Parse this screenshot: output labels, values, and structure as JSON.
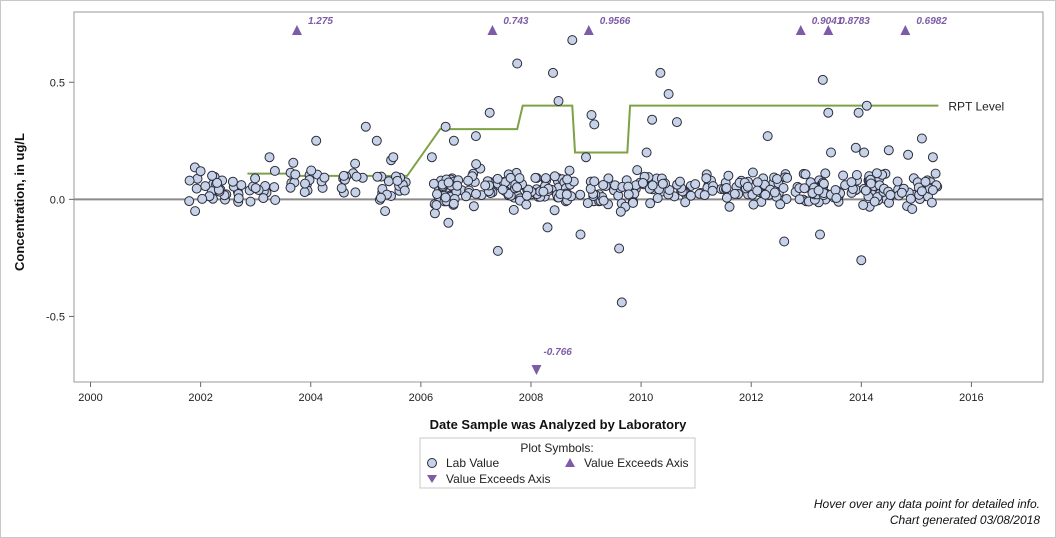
{
  "chart_data": {
    "type": "scatter",
    "xlabel": "Date Sample was Analyzed by Laboratory",
    "ylabel": "Concentration, in ug/L",
    "x_range": [
      1999.7,
      2017.3
    ],
    "y_range": [
      -0.78,
      0.8
    ],
    "x_ticks": [
      2000,
      2002,
      2004,
      2006,
      2008,
      2010,
      2012,
      2014,
      2016
    ],
    "y_ticks": [
      -0.5,
      0.0,
      0.5
    ],
    "y_tick_labels": [
      "-0.5",
      "0.0",
      "0.5"
    ],
    "grid": false,
    "colors": {
      "lab_point_fill": "#c5d2e8",
      "lab_point_stroke": "#2b2b3a",
      "exceed_marker": "#7d5ba6",
      "rpt_line": "#7ea146",
      "zero_line": "#8a8a8a"
    },
    "rpt_level": {
      "label": "RPT Level",
      "points": [
        [
          2002.85,
          0.11
        ],
        [
          2003.75,
          0.11
        ],
        [
          2003.8,
          0.1
        ],
        [
          2005.75,
          0.1
        ],
        [
          2006.35,
          0.3
        ],
        [
          2007.75,
          0.3
        ],
        [
          2007.85,
          0.4
        ],
        [
          2008.75,
          0.4
        ],
        [
          2008.8,
          0.2
        ],
        [
          2009.75,
          0.2
        ],
        [
          2009.8,
          0.4
        ],
        [
          2015.4,
          0.4
        ]
      ]
    },
    "exceeds_up": [
      {
        "x": 2003.75,
        "label": "1.275"
      },
      {
        "x": 2007.3,
        "label": "0.743"
      },
      {
        "x": 2009.05,
        "label": "0.9566"
      },
      {
        "x": 2012.9,
        "label": "0.9041"
      },
      {
        "x": 2013.4,
        "label": "0.8783"
      },
      {
        "x": 2014.8,
        "label": "0.6982"
      }
    ],
    "exceeds_down": [
      {
        "x": 2008.1,
        "label": "-0.766"
      }
    ],
    "notable_points": [
      [
        2001.8,
        0.08
      ],
      [
        2001.9,
        -0.05
      ],
      [
        2002.0,
        0.12
      ],
      [
        2002.3,
        0.07
      ],
      [
        2003.25,
        0.18
      ],
      [
        2004.1,
        0.25
      ],
      [
        2004.6,
        0.1
      ],
      [
        2005.0,
        0.31
      ],
      [
        2005.2,
        0.25
      ],
      [
        2005.35,
        -0.05
      ],
      [
        2005.5,
        0.18
      ],
      [
        2006.2,
        0.18
      ],
      [
        2006.45,
        0.31
      ],
      [
        2006.5,
        -0.1
      ],
      [
        2006.6,
        0.25
      ],
      [
        2007.0,
        0.27
      ],
      [
        2007.25,
        0.37
      ],
      [
        2007.4,
        -0.22
      ],
      [
        2007.75,
        0.58
      ],
      [
        2008.3,
        -0.12
      ],
      [
        2008.4,
        0.54
      ],
      [
        2008.5,
        0.42
      ],
      [
        2008.75,
        0.68
      ],
      [
        2008.9,
        -0.15
      ],
      [
        2009.0,
        0.18
      ],
      [
        2009.1,
        0.36
      ],
      [
        2009.15,
        0.32
      ],
      [
        2009.6,
        -0.21
      ],
      [
        2009.65,
        -0.44
      ],
      [
        2010.1,
        0.2
      ],
      [
        2010.2,
        0.34
      ],
      [
        2010.35,
        0.54
      ],
      [
        2010.5,
        0.45
      ],
      [
        2010.65,
        0.33
      ],
      [
        2012.3,
        0.27
      ],
      [
        2012.6,
        -0.18
      ],
      [
        2013.3,
        0.51
      ],
      [
        2013.4,
        0.37
      ],
      [
        2013.45,
        0.2
      ],
      [
        2013.25,
        -0.15
      ],
      [
        2013.9,
        0.22
      ],
      [
        2013.95,
        0.37
      ],
      [
        2014.0,
        -0.26
      ],
      [
        2014.1,
        0.4
      ],
      [
        2014.05,
        0.2
      ],
      [
        2014.5,
        0.21
      ],
      [
        2014.85,
        0.19
      ],
      [
        2015.1,
        0.26
      ],
      [
        2015.3,
        0.18
      ],
      [
        2015.35,
        0.11
      ]
    ],
    "legend": {
      "title": "Plot Symbols:",
      "items": [
        {
          "symbol": "circle",
          "label": "Lab Value"
        },
        {
          "symbol": "triangle-up",
          "label": "Value Exceeds Axis"
        },
        {
          "symbol": "triangle-down",
          "label": "Value Exceeds Axis"
        }
      ]
    }
  },
  "footnotes": {
    "hover": "Hover over any data point for detailed info.",
    "generated": "Chart generated 03/08/2018"
  }
}
